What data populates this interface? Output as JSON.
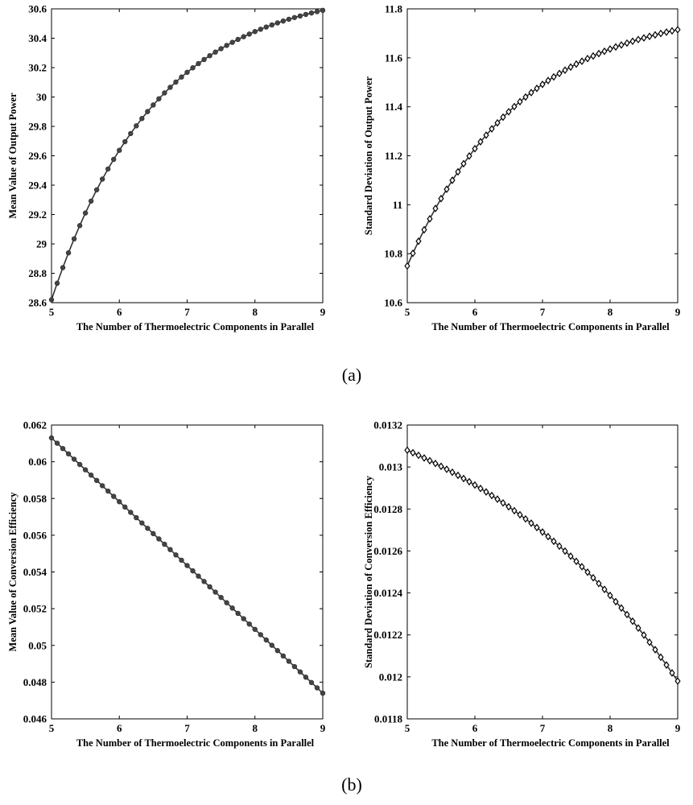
{
  "captions": {
    "a": "(a)",
    "b": "(b)"
  },
  "chart_data": [
    {
      "id": "a_left",
      "type": "line",
      "xlabel": "The Number of Thermoelectric Components in Parallel",
      "ylabel": "Mean Value of Output Power",
      "xlim": [
        5,
        9
      ],
      "ylim": [
        28.6,
        30.6
      ],
      "xticks": [
        "5",
        "6",
        "7",
        "8",
        "9"
      ],
      "yticks": [
        "28.6",
        "28.8",
        "29",
        "29.2",
        "29.4",
        "29.6",
        "29.8",
        "30",
        "30.2",
        "30.4",
        "30.6"
      ],
      "marker": "circle",
      "x": [
        5,
        9
      ],
      "curve": {
        "form": "saturating",
        "start": 28.62,
        "end": 30.59,
        "k": 0.65,
        "points": 49
      }
    },
    {
      "id": "a_right",
      "type": "line",
      "xlabel": "The Number of Thermoelectric Components in Parallel",
      "ylabel": "Standard Deviation of Output Power",
      "xlim": [
        5,
        9
      ],
      "ylim": [
        10.6,
        11.8
      ],
      "xticks": [
        "5",
        "6",
        "7",
        "8",
        "9"
      ],
      "yticks": [
        "10.6",
        "10.8",
        "11",
        "11.2",
        "11.4",
        "11.6",
        "11.8"
      ],
      "marker": "diamond",
      "x": [
        5,
        9
      ],
      "curve": {
        "form": "saturating",
        "start": 10.75,
        "end": 11.715,
        "k": 0.6,
        "points": 49
      }
    },
    {
      "id": "b_left",
      "type": "line",
      "xlabel": "The Number of Thermoelectric Components in Parallel",
      "ylabel": "Mean Value of Conversion Efficiency",
      "xlim": [
        5,
        9
      ],
      "ylim": [
        0.046,
        0.062
      ],
      "xticks": [
        "5",
        "6",
        "7",
        "8",
        "9"
      ],
      "yticks": [
        "0.046",
        "0.048",
        "0.05",
        "0.052",
        "0.054",
        "0.056",
        "0.058",
        "0.06",
        "0.062"
      ],
      "marker": "circle",
      "x": [
        5,
        9
      ],
      "curve": {
        "form": "linear",
        "start": 0.0613,
        "end": 0.0474,
        "points": 49
      }
    },
    {
      "id": "b_right",
      "type": "line",
      "xlabel": "The Number of Thermoelectric Components in Parallel",
      "ylabel": "Standard Deviation of Conversion Efficiency",
      "xlim": [
        5,
        9
      ],
      "ylim": [
        0.0118,
        0.0132
      ],
      "xticks": [
        "5",
        "6",
        "7",
        "8",
        "9"
      ],
      "yticks": [
        "0.0118",
        "0.012",
        "0.0122",
        "0.0124",
        "0.0126",
        "0.0128",
        "0.013",
        "0.0132"
      ],
      "marker": "diamond",
      "x": [
        5,
        9
      ],
      "curve": {
        "form": "accelerating",
        "start": 0.01308,
        "end": 0.01198,
        "k": 0.3,
        "points": 49
      }
    }
  ]
}
